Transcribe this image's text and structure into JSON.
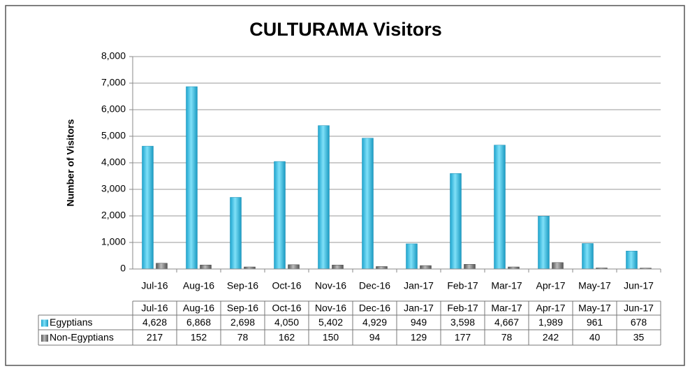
{
  "chart_data": {
    "type": "bar",
    "title": "CULTURAMA Visitors",
    "y_label": "Number of Visitors",
    "categories": [
      "Jul-16",
      "Aug-16",
      "Sep-16",
      "Oct-16",
      "Nov-16",
      "Dec-16",
      "Jan-17",
      "Feb-17",
      "Mar-17",
      "Apr-17",
      "May-17",
      "Jun-17"
    ],
    "series": [
      {
        "name": "Egyptians",
        "color": "#3ec5ea",
        "values": [
          4628,
          6868,
          2698,
          4050,
          5402,
          4929,
          949,
          3598,
          4667,
          1989,
          961,
          678
        ],
        "value_labels": [
          "4,628",
          "6,868",
          "2,698",
          "4,050",
          "5,402",
          "4,929",
          "949",
          "3,598",
          "4,667",
          "1,989",
          "961",
          "678"
        ]
      },
      {
        "name": "Non-Egyptians",
        "color": "#7f7f7f",
        "values": [
          217,
          152,
          78,
          162,
          150,
          94,
          129,
          177,
          78,
          242,
          40,
          35
        ],
        "value_labels": [
          "217",
          "152",
          "78",
          "162",
          "150",
          "94",
          "129",
          "177",
          "78",
          "242",
          "40",
          "35"
        ]
      }
    ],
    "ylim": [
      0,
      8000
    ],
    "yticks": [
      0,
      {
        "value": 1000,
        "label": "1,000"
      },
      {
        "value": 2000,
        "label": "2,000"
      },
      {
        "value": 3000,
        "label": "3,000"
      },
      {
        "value": 4000,
        "label": "4,000"
      },
      {
        "value": 5000,
        "label": "5,000"
      },
      {
        "value": 6000,
        "label": "6,000"
      },
      {
        "value": 7000,
        "label": "7,000"
      },
      {
        "value": 8000,
        "label": "8,000"
      }
    ],
    "grid": true,
    "data_table": true
  }
}
